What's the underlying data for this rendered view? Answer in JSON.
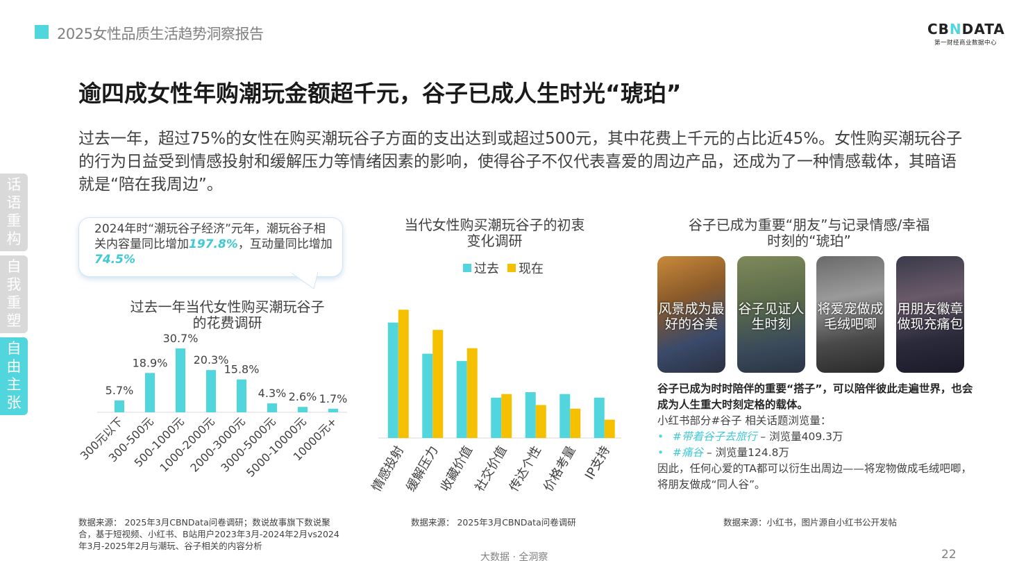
{
  "header": {
    "report_title": "2025女性品质生活趋势洞察报告",
    "brand_name_left": "CB",
    "brand_name_mark": "N",
    "brand_name_right": "DATA",
    "brand_sub": "第一财经商业数据中心",
    "accent_color": "#52d6de"
  },
  "headline": "逾四成女性年购潮玩金额超千元，谷子已成人生时光“琥珀”",
  "intro": "过去一年，超过75%的女性在购买潮玩谷子方面的支出达到或超过500元，其中花费上千元的占比近45%。女性购买潮玩谷子的行为日益受到情感投射和缓解压力等情绪因素的影响，使得谷子不仅代表喜爱的周边产品，还成为了一种情感载体，其暗语就是“陪在我周边”。",
  "side_tabs": [
    {
      "label": "话语重构",
      "active": false
    },
    {
      "label": "自我重塑",
      "active": false
    },
    {
      "label": "自由主张",
      "active": true
    }
  ],
  "bubble": {
    "text_1": "2024年时“潮玩谷子经济”元年，潮玩谷子相关内容量同比增加",
    "value_1": "197.8%",
    "text_2": "，互动量同比增加",
    "value_2": "74.5%"
  },
  "chart_data": [
    {
      "type": "bar",
      "title_line1": "过去一年当代女性购买潮玩谷子",
      "title_line2": "的花费调研",
      "categories": [
        "300元以下",
        "300-500元",
        "500-1000元",
        "1000-2000元",
        "2000-3000元",
        "3000-5000元",
        "5000-10000元",
        "10000元+"
      ],
      "values": [
        5.7,
        18.9,
        30.7,
        20.3,
        15.8,
        4.3,
        2.6,
        1.7
      ],
      "value_labels": [
        "5.7%",
        "18.9%",
        "30.7%",
        "20.3%",
        "15.8%",
        "4.3%",
        "2.6%",
        "1.7%"
      ],
      "color": "#52d6de",
      "ylim": [
        0,
        32
      ]
    },
    {
      "type": "bar",
      "title_line1": "当代女性购买潮玩谷子的初衷",
      "title_line2": "变化调研",
      "categories": [
        "情感投射",
        "缓解压力",
        "收藏价值",
        "社交价值",
        "传达个性",
        "价格考量",
        "IP支持"
      ],
      "series": [
        {
          "name": "过去",
          "color": "#52d6de",
          "values": [
            63,
            46,
            42,
            22,
            25,
            24,
            22
          ]
        },
        {
          "name": "现在",
          "color": "#f5c000",
          "values": [
            70,
            59,
            49,
            24,
            18,
            16,
            10
          ]
        }
      ],
      "ylim": [
        0,
        75
      ],
      "legend_position": "top"
    }
  ],
  "right_panel": {
    "title_line1": "谷子已成为重要“朋友”与记录情感/幸福",
    "title_line2": "时刻的“琥珀”",
    "cards": [
      {
        "caption": "风景成为最好的谷美"
      },
      {
        "caption": "谷子见证人生时刻"
      },
      {
        "caption": "将爱宠做成毛绒吧唧"
      },
      {
        "caption": "用朋友徽章做现充痛包"
      }
    ],
    "bold_text": "谷子已成为时时陪伴的重要“搭子”，可以陪伴彼此走遍世界，也会成为人生重大时刻定格的载体。",
    "views_heading": "小红书部分#谷子 相关话题浏览量：",
    "topics": [
      {
        "tag": "#带着谷子去旅行",
        "views": " – 浏览量409.3万"
      },
      {
        "tag": "#痛谷",
        "views": " – 浏览量124.8万"
      }
    ],
    "closing": "因此，任何心爱的TA都可以衍生出周边——将宠物做成毛绒吧唧，将朋友做成“同人谷”。"
  },
  "sources": {
    "left": "数据来源： 2025年3月CBNData问卷调研；数说故事旗下数说聚合，基于短视频、小红书、B站用户2023年3月-2024年2月vs2024年3月-2025年2月与潮玩、谷子相关的内容分析",
    "middle": "数据来源： 2025年3月CBNData问卷调研",
    "right": "数据来源：小红书，图片源自小红书公开发帖"
  },
  "footer": {
    "slogan": "大数据 · 全洞察",
    "page_number": "22"
  }
}
